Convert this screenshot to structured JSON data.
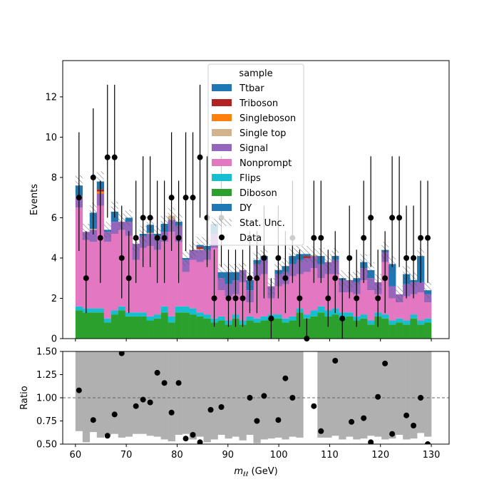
{
  "chart_data": [
    {
      "type": "bar",
      "stacked": true,
      "xlabel": "",
      "ylabel": "Events",
      "xlim": [
        57.5,
        133.5
      ],
      "ylim": [
        0,
        13.8
      ],
      "yticks": [
        0,
        2,
        4,
        6,
        8,
        10,
        12
      ],
      "legend_title": "sample",
      "legend_placement": "top-center",
      "bin_edges": [
        60.0,
        61.4,
        62.8,
        64.2,
        65.6,
        67.0,
        68.4,
        69.8,
        71.2,
        72.6,
        74.0,
        75.4,
        76.8,
        78.2,
        79.6,
        81.0,
        82.4,
        83.8,
        85.2,
        86.6,
        88.0,
        89.4,
        90.8,
        92.2,
        93.6,
        95.0,
        96.4,
        97.8,
        99.2,
        100.6,
        102.0,
        103.4,
        104.8,
        106.2,
        107.6,
        109.0,
        110.4,
        111.8,
        113.2,
        114.6,
        116.0,
        117.4,
        118.8,
        120.2,
        121.6,
        123.0,
        124.4,
        125.8,
        127.2,
        128.6,
        130.0
      ],
      "series": [
        {
          "name": "Diboson",
          "color": "#2ca02c",
          "values": [
            1.4,
            1.3,
            1.3,
            1.3,
            0.8,
            1.2,
            1.4,
            1.1,
            1.1,
            1.1,
            0.9,
            1.0,
            1.3,
            0.8,
            1.3,
            1.3,
            1.2,
            1.1,
            1.0,
            0.8,
            0.9,
            0.7,
            1.0,
            0.7,
            0.9,
            0.8,
            0.9,
            1.0,
            1.0,
            0.8,
            0.9,
            1.3,
            1.0,
            1.1,
            1.3,
            1.1,
            1.2,
            1.0,
            1.1,
            0.9,
            1.0,
            0.7,
            1.1,
            1.0,
            0.7,
            0.8,
            0.7,
            1.0,
            0.7,
            0.8
          ]
        },
        {
          "name": "Flips",
          "color": "#17becf",
          "values": [
            0.2,
            0.2,
            0.2,
            0.2,
            0.2,
            0.2,
            0.2,
            0.2,
            0.2,
            0.2,
            0.2,
            0.2,
            0.3,
            0.3,
            0.3,
            0.3,
            0.3,
            0.2,
            0.2,
            0.2,
            0.2,
            0.2,
            0.2,
            0.2,
            0.2,
            0.2,
            0.2,
            0.2,
            0.2,
            0.2,
            0.2,
            0.2,
            0.2,
            0.3,
            0.3,
            0.3,
            0.3,
            0.3,
            0.2,
            0.2,
            0.2,
            0.2,
            0.2,
            0.2,
            0.2,
            0.2,
            0.2,
            0.2,
            0.2,
            0.2
          ]
        },
        {
          "name": "Nonprompt",
          "color": "#e377c2",
          "values": [
            4.9,
            3.4,
            3.3,
            5.1,
            3.8,
            3.8,
            3.8,
            3.8,
            2.6,
            3.2,
            3.5,
            3.2,
            3.2,
            4.2,
            3.2,
            1.7,
            2.4,
            2.5,
            2.7,
            3.5,
            1.3,
            1.2,
            1.0,
            1.9,
            0.7,
            2.1,
            2.1,
            0.8,
            1.4,
            1.7,
            2.0,
            1.7,
            2.1,
            2.1,
            1.4,
            1.8,
            1.7,
            1.0,
            1.0,
            1.1,
            1.7,
            1.5,
            0.9,
            2.6,
            1.1,
            0.8,
            1.2,
            1.0,
            1.4,
            0.8
          ]
        },
        {
          "name": "Signal",
          "color": "#9467bd",
          "values": [
            0.6,
            0.4,
            0.6,
            0.6,
            0.5,
            0.6,
            0.4,
            0.7,
            0.8,
            0.6,
            0.6,
            0.7,
            0.5,
            0.6,
            0.8,
            0.6,
            0.5,
            0.6,
            0.5,
            0.7,
            0.6,
            0.6,
            0.7,
            0.6,
            0.6,
            0.6,
            0.7,
            0.6,
            0.6,
            0.6,
            0.6,
            0.7,
            0.7,
            0.6,
            0.7,
            0.6,
            0.7,
            0.6,
            0.6,
            0.6,
            0.6,
            0.6,
            0.6,
            0.5,
            0.6,
            0.4,
            0.6,
            0.6,
            0.5,
            0.4
          ]
        },
        {
          "name": "Single top",
          "color": "#d2b48c",
          "values": [
            0,
            0,
            0.05,
            0,
            0,
            0,
            0,
            0,
            0,
            0,
            0.05,
            0,
            0,
            0.2,
            0,
            0,
            0,
            0.05,
            0,
            0,
            0,
            0,
            0,
            0,
            0,
            0,
            0,
            0,
            0,
            0,
            0,
            0,
            0,
            0.05,
            0,
            0,
            0,
            0,
            0,
            0,
            0,
            0,
            0,
            0,
            0,
            0,
            0,
            0,
            0,
            0
          ]
        },
        {
          "name": "Singleboson",
          "color": "#ff7f0e",
          "values": [
            0,
            0,
            0,
            0.1,
            0,
            0,
            0,
            0,
            0,
            0,
            0,
            0,
            0,
            0,
            0,
            0,
            0,
            0,
            0,
            0,
            0,
            0,
            0,
            0,
            0,
            0,
            0,
            0,
            0,
            0,
            0,
            0,
            0,
            0,
            0,
            0,
            0,
            0,
            0,
            0,
            0,
            0,
            0,
            0,
            0,
            0,
            0,
            0,
            0,
            0
          ]
        },
        {
          "name": "Triboson",
          "color": "#b22222",
          "values": [
            0,
            0,
            0,
            0.1,
            0,
            0,
            0,
            0,
            0,
            0,
            0,
            0,
            0,
            0,
            0,
            0,
            0,
            0.1,
            0,
            0,
            0,
            0,
            0,
            0,
            0,
            0,
            0,
            0,
            0,
            0,
            0,
            0,
            0.1,
            0,
            0,
            0,
            0,
            0,
            0,
            0,
            0,
            0,
            0,
            0,
            0,
            0,
            0,
            0,
            0,
            0
          ]
        },
        {
          "name": "Ttbar",
          "color": "#1f77b4",
          "values": [
            0.5,
            0,
            0.8,
            0.4,
            0.1,
            0.5,
            0,
            0.2,
            0,
            0.1,
            0.4,
            0.1,
            0.4,
            0,
            0.2,
            0.1,
            0,
            0.1,
            0.2,
            0.5,
            0.3,
            0.6,
            0.4,
            0,
            0.5,
            0.2,
            0.2,
            0,
            0.2,
            0.3,
            0.4,
            0.3,
            0.1,
            0,
            0.4,
            0,
            0.2,
            0.1,
            0,
            0.2,
            0.3,
            0.4,
            0,
            0.1,
            1.1,
            0,
            0.5,
            0.1,
            1.3,
            0.2
          ]
        },
        {
          "name": "DY",
          "color": "#1f77b4",
          "values": [
            0,
            0,
            0,
            0,
            0,
            0,
            0,
            0,
            0,
            0,
            0,
            0,
            0,
            0,
            0,
            0,
            0,
            0,
            0,
            0,
            0,
            0,
            0,
            0,
            0,
            0,
            0,
            0,
            0,
            0,
            0,
            0,
            0,
            0,
            0,
            0,
            0,
            0,
            0,
            0,
            0,
            0,
            0,
            0,
            0,
            0,
            0,
            0,
            0,
            0
          ]
        }
      ],
      "stat_unc": {
        "name": "Stat. Unc.",
        "values": [
          0.5,
          0.4,
          0.5,
          0.5,
          0.4,
          0.5,
          0.4,
          0.4,
          0.4,
          0.4,
          0.4,
          0.4,
          0.4,
          0.4,
          0.4,
          0.4,
          0.4,
          0.4,
          0.4,
          0.4,
          0.4,
          0.4,
          0.4,
          0.4,
          0.4,
          0.4,
          0.4,
          0.4,
          0.4,
          0.4,
          0.4,
          0.4,
          0.4,
          0.4,
          0.4,
          0.4,
          0.4,
          0.4,
          0.4,
          0.4,
          0.4,
          0.4,
          0.4,
          0.4,
          0.4,
          0.4,
          0.4,
          0.4,
          0.4,
          0.4
        ]
      },
      "data": {
        "name": "Data",
        "x": [
          60.7,
          62.1,
          63.5,
          64.9,
          66.3,
          67.7,
          69.1,
          70.5,
          71.9,
          73.3,
          74.7,
          76.1,
          77.5,
          78.9,
          80.3,
          81.7,
          83.1,
          84.5,
          85.9,
          87.3,
          88.7,
          90.1,
          91.5,
          92.9,
          94.3,
          95.7,
          97.1,
          98.5,
          99.9,
          101.3,
          102.7,
          104.1,
          105.5,
          106.9,
          108.3,
          109.7,
          111.1,
          112.5,
          113.9,
          115.3,
          116.7,
          118.1,
          119.5,
          120.9,
          122.3,
          123.7,
          125.1,
          126.5,
          127.9,
          129.3
        ],
        "y": [
          7,
          3,
          8,
          5,
          9,
          9,
          4,
          3,
          5,
          6,
          6,
          5,
          5,
          7,
          5,
          7,
          7,
          9,
          6,
          2,
          6,
          2,
          2,
          2,
          3,
          3,
          4,
          1,
          4,
          3,
          5,
          2,
          0,
          5,
          5,
          2,
          3,
          1,
          4,
          2,
          5,
          6,
          2,
          3,
          6,
          6,
          4,
          4,
          5,
          5
        ]
      }
    },
    {
      "type": "scatter",
      "xlabel": "m_{\\ell\\ell} (GeV)",
      "ylabel": "Ratio",
      "xlim": [
        57.5,
        133.5
      ],
      "ylim": [
        0.5,
        1.5
      ],
      "xticks": [
        60,
        70,
        80,
        90,
        100,
        110,
        120,
        130
      ],
      "yticks": [
        0.5,
        0.75,
        1.0,
        1.25,
        1.5
      ],
      "ytick_labels": [
        "0.50",
        "0.75",
        "1.00",
        "1.25",
        "1.50"
      ],
      "reference_line": 1.0,
      "x": [
        60.7,
        63.5,
        66.3,
        67.7,
        69.1,
        71.9,
        73.3,
        74.7,
        76.1,
        77.5,
        78.9,
        80.3,
        81.7,
        83.1,
        84.5,
        86.6,
        88.7,
        94.3,
        95.7,
        97.1,
        99.9,
        101.3,
        102.7,
        106.9,
        108.3,
        111.1,
        114.3,
        116.7,
        118.1,
        119.5,
        120.9,
        122.3,
        125.1,
        126.5,
        127.9,
        129.3
      ],
      "y": [
        1.08,
        0.76,
        0.59,
        0.82,
        1.48,
        0.91,
        0.98,
        0.95,
        1.27,
        1.16,
        0.84,
        1.16,
        0.56,
        0.6,
        0.52,
        0.87,
        0.9,
        1.0,
        0.75,
        1.02,
        0.76,
        1.21,
        1.0,
        0.91,
        0.64,
        1.4,
        0.74,
        0.78,
        0.52,
        1.01,
        1.37,
        0.61,
        0.81,
        0.7,
        1.0,
        0.5
      ],
      "band_lower": [
        0.64,
        0.52,
        0.63,
        0.57,
        0.6,
        0.61,
        0.57,
        0.58,
        0.61,
        0.61,
        0.59,
        0.58,
        0.55,
        0.53,
        0.6,
        0.61,
        0.55,
        0.58,
        0.52,
        0.55,
        0.6,
        0.56,
        0.58,
        0.54,
        0.6,
        0.51,
        0.55,
        0.56,
        0.57,
        0.55,
        0.58,
        0.57,
        0.59,
        0.56,
        0.57,
        0.57,
        0.59,
        0.55,
        0.58,
        0.55,
        0.56,
        0.59,
        0.58,
        0.55,
        0.56,
        0.6,
        0.55,
        0.56,
        0.62,
        0.58
      ],
      "band_upper": [
        1.5,
        1.5,
        1.5,
        1.5,
        1.5,
        1.5,
        1.5,
        1.5,
        1.5,
        1.5,
        1.5,
        1.5,
        1.5,
        1.5,
        1.5,
        1.5,
        1.5,
        1.5,
        1.5,
        1.5,
        1.5,
        1.5,
        1.5,
        1.5,
        1.5,
        1.5,
        1.5,
        1.5,
        1.5,
        1.5,
        1.5,
        1.5,
        0,
        0,
        1.5,
        1.5,
        1.5,
        1.5,
        1.5,
        1.5,
        1.5,
        1.5,
        1.5,
        1.5,
        1.5,
        1.5,
        1.5,
        1.5,
        1.5,
        1.5
      ]
    }
  ],
  "legend": {
    "title": "sample",
    "entries": [
      {
        "label": "Ttbar",
        "color": "#1f77b4",
        "kind": "patch"
      },
      {
        "label": "Triboson",
        "color": "#b22222",
        "kind": "patch"
      },
      {
        "label": "Singleboson",
        "color": "#ff7f0e",
        "kind": "patch"
      },
      {
        "label": "Single top",
        "color": "#d2b48c",
        "kind": "patch"
      },
      {
        "label": "Signal",
        "color": "#9467bd",
        "kind": "patch"
      },
      {
        "label": "Nonprompt",
        "color": "#e377c2",
        "kind": "patch"
      },
      {
        "label": "Flips",
        "color": "#17becf",
        "kind": "patch"
      },
      {
        "label": "Diboson",
        "color": "#2ca02c",
        "kind": "patch"
      },
      {
        "label": "DY",
        "color": "#1f77b4",
        "kind": "patch"
      },
      {
        "label": "Stat. Unc.",
        "color": "#555555",
        "kind": "hatch"
      },
      {
        "label": "Data",
        "color": "#000000",
        "kind": "marker"
      }
    ]
  },
  "axes_text": {
    "main_ylabel": "Events",
    "ratio_ylabel": "Ratio",
    "xlabel_main": "m",
    "xlabel_sub": "ℓℓ",
    "xlabel_unit": " (GeV)"
  }
}
